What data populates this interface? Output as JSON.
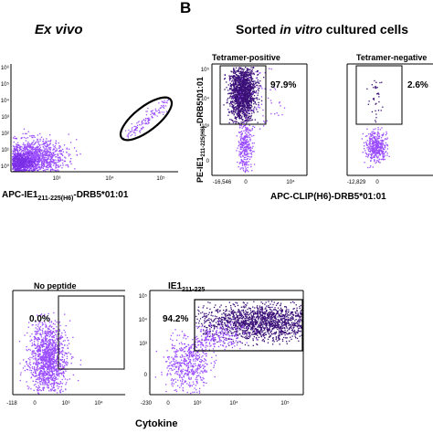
{
  "figure": {
    "panel_label": "B",
    "left_title": "Ex vivo",
    "right_title_pre": "Sorted ",
    "right_title_ital": "in vitro",
    "right_title_post": " cultured cells"
  },
  "plot1": {
    "xlabel_pre": "APC-IE1",
    "xlabel_sub": "211-225(H6)",
    "xlabel_post": "-DRB5*01:01",
    "xticks": [
      "10³",
      "10⁴",
      "10⁵"
    ],
    "yticks": [
      "10⁶",
      "10⁵",
      "10⁴",
      "10³",
      "10²",
      "10¹",
      "10⁰"
    ]
  },
  "plot2": {
    "subtitle": "Tetramer-positive",
    "percent": "97.9%",
    "ylabel_pre": "PE-IE1",
    "ylabel_sub": "211-225(H6)",
    "ylabel_post": "-DRB5*01:01",
    "xticks": [
      "-16,546",
      "0",
      "10⁴"
    ],
    "yticks": [
      "10⁵",
      "10⁴",
      "10³",
      "0"
    ]
  },
  "plot3": {
    "subtitle": "Tetramer-negative",
    "percent": "2.6%",
    "xticks": [
      "-12,829",
      "0"
    ]
  },
  "shared_right_xlabel": "APC-CLIP(H6)-DRB5*01:01",
  "plot4": {
    "subtitle": "No peptide",
    "percent": "0.0%",
    "xticks": [
      "-118",
      "0",
      "10³",
      "10⁴"
    ],
    "yticks": [
      "10⁵",
      "10⁴",
      "10³",
      "0"
    ]
  },
  "plot5": {
    "subtitle_pre": "IE1",
    "subtitle_sub": "211-225",
    "percent": "94.2%",
    "xticks": [
      "-230",
      "0",
      "10³",
      "10⁴",
      "10⁵"
    ],
    "yticks": [
      "10⁵",
      "10⁴",
      "10³",
      "0"
    ]
  },
  "shared_bottom_xlabel": "Cytokine",
  "colors": {
    "light_purple": "#9b4dff",
    "dark_purple": "#3b1078",
    "mid_purple": "#7a2ee6"
  }
}
